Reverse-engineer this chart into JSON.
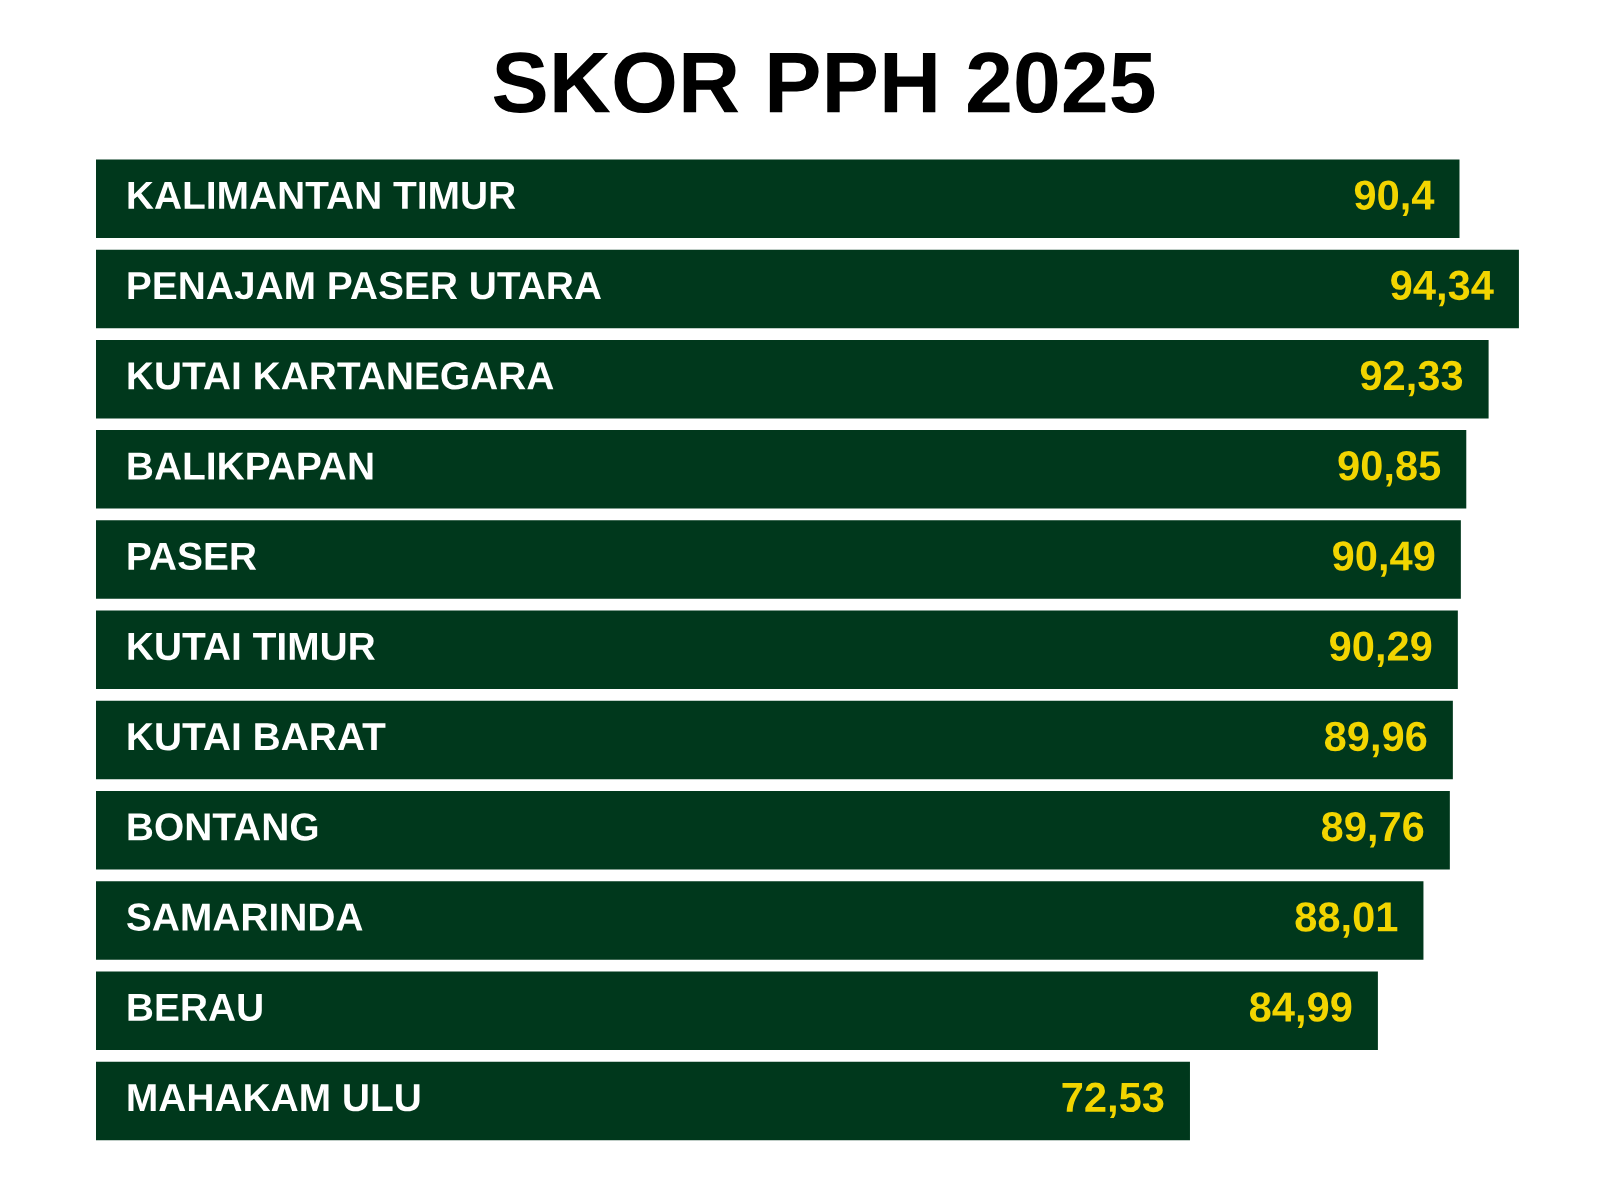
{
  "chart_data": {
    "type": "bar",
    "orientation": "horizontal",
    "title": "SKOR PPH 2025",
    "categories": [
      "KALIMANTAN TIMUR",
      "PENAJAM PASER UTARA",
      "KUTAI KARTANEGARA",
      "BALIKPAPAN",
      "PASER",
      "KUTAI TIMUR",
      "KUTAI BARAT",
      "BONTANG",
      "SAMARINDA",
      "BERAU",
      "MAHAKAM ULU"
    ],
    "values": [
      90.4,
      94.34,
      92.33,
      90.85,
      90.49,
      90.29,
      89.96,
      89.76,
      88.01,
      84.99,
      72.53
    ],
    "value_labels": [
      "90,4",
      "94,34",
      "92,33",
      "90,85",
      "90,49",
      "90,29",
      "89,96",
      "89,76",
      "88,01",
      "84,99",
      "72,53"
    ],
    "color": "#00381c"
  }
}
